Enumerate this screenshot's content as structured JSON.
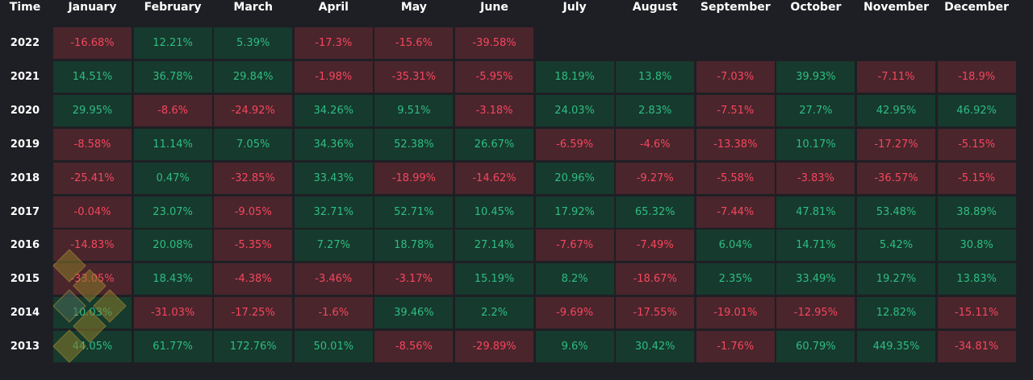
{
  "chart_data": {
    "type": "table",
    "corner_label": "Time",
    "months": [
      "January",
      "February",
      "March",
      "April",
      "May",
      "June",
      "July",
      "August",
      "September",
      "October",
      "November",
      "December"
    ],
    "rows": [
      {
        "year": "2022",
        "values": [
          "-16.68%",
          "12.21%",
          "5.39%",
          "-17.3%",
          "-15.6%",
          "-39.58%",
          null,
          null,
          null,
          null,
          null,
          null
        ]
      },
      {
        "year": "2021",
        "values": [
          "14.51%",
          "36.78%",
          "29.84%",
          "-1.98%",
          "-35.31%",
          "-5.95%",
          "18.19%",
          "13.8%",
          "-7.03%",
          "39.93%",
          "-7.11%",
          "-18.9%"
        ]
      },
      {
        "year": "2020",
        "values": [
          "29.95%",
          "-8.6%",
          "-24.92%",
          "34.26%",
          "9.51%",
          "-3.18%",
          "24.03%",
          "2.83%",
          "-7.51%",
          "27.7%",
          "42.95%",
          "46.92%"
        ]
      },
      {
        "year": "2019",
        "values": [
          "-8.58%",
          "11.14%",
          "7.05%",
          "34.36%",
          "52.38%",
          "26.67%",
          "-6.59%",
          "-4.6%",
          "-13.38%",
          "10.17%",
          "-17.27%",
          "-5.15%"
        ]
      },
      {
        "year": "2018",
        "values": [
          "-25.41%",
          "0.47%",
          "-32.85%",
          "33.43%",
          "-18.99%",
          "-14.62%",
          "20.96%",
          "-9.27%",
          "-5.58%",
          "-3.83%",
          "-36.57%",
          "-5.15%"
        ]
      },
      {
        "year": "2017",
        "values": [
          "-0.04%",
          "23.07%",
          "-9.05%",
          "32.71%",
          "52.71%",
          "10.45%",
          "17.92%",
          "65.32%",
          "-7.44%",
          "47.81%",
          "53.48%",
          "38.89%"
        ]
      },
      {
        "year": "2016",
        "values": [
          "-14.83%",
          "20.08%",
          "-5.35%",
          "7.27%",
          "18.78%",
          "27.14%",
          "-7.67%",
          "-7.49%",
          "6.04%",
          "14.71%",
          "5.42%",
          "30.8%"
        ]
      },
      {
        "year": "2015",
        "values": [
          "-33.05%",
          "18.43%",
          "-4.38%",
          "-3.46%",
          "-3.17%",
          "15.19%",
          "8.2%",
          "-18.67%",
          "2.35%",
          "33.49%",
          "19.27%",
          "13.83%"
        ]
      },
      {
        "year": "2014",
        "values": [
          "10.03%",
          "-31.03%",
          "-17.25%",
          "-1.6%",
          "39.46%",
          "2.2%",
          "-9.69%",
          "-17.55%",
          "-19.01%",
          "-12.95%",
          "12.82%",
          "-15.11%"
        ]
      },
      {
        "year": "2013",
        "values": [
          "44.05%",
          "61.77%",
          "172.76%",
          "50.01%",
          "-8.56%",
          "-29.89%",
          "9.6%",
          "30.42%",
          "-1.76%",
          "60.79%",
          "449.35%",
          "-34.81%"
        ]
      }
    ],
    "colors": {
      "positive_bg": "#163a2d",
      "positive_text": "#2ebd85",
      "negative_bg": "#4a252c",
      "negative_text": "#f6465d",
      "background": "#1e1f24",
      "header_text": "#ffffff"
    }
  }
}
